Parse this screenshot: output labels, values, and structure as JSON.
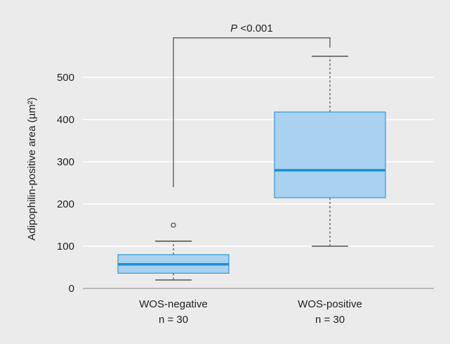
{
  "chart_data": {
    "type": "box",
    "ylabel": "Adipophilin-positive area (µm²)",
    "ylim": [
      0,
      583
    ],
    "yticks": [
      0,
      100,
      200,
      300,
      400,
      500
    ],
    "grid": true,
    "colors": {
      "box_fill": "#a8d2ef",
      "box_edge": "#2f9ad6",
      "median": "#1b8fd6",
      "whisker": "#555555",
      "background": "#ebebeb"
    },
    "groups": [
      {
        "label": "WOS-negative",
        "n_label": "n = 30",
        "min": 20,
        "q1": 36,
        "median": 57,
        "q3": 80,
        "max": 112,
        "outliers": [
          150
        ]
      },
      {
        "label": "WOS-positive",
        "n_label": "n = 30",
        "min": 100,
        "q1": 215,
        "median": 280,
        "q3": 418,
        "max": 550,
        "outliers": []
      }
    ],
    "significance": {
      "p_letter": "P",
      "p_text": "<0.001",
      "left_value": 240,
      "bracket_value": 552
    }
  }
}
